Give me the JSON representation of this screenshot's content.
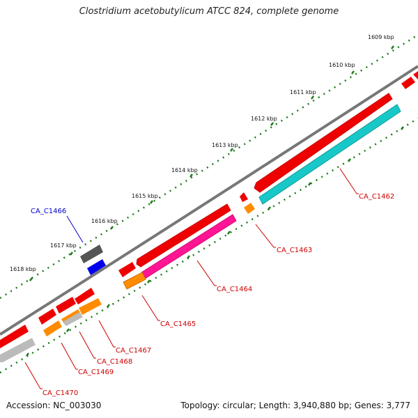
{
  "title": "Clostridium acetobutylicum ATCC 824, complete genome",
  "footer": {
    "accession": "Accession: NC_003030",
    "stats": "Topology: circular; Length: 3,940,880 bp; Genes: 3,777"
  },
  "kbp_labels": [
    "1609 kbp",
    "1610 kbp",
    "1611 kbp",
    "1612 kbp",
    "1613 kbp",
    "1614 kbp",
    "1615 kbp",
    "1616 kbp",
    "1617 kbp",
    "1618 kbp"
  ],
  "gene_labels": [
    "CA_C1462",
    "CA_C1463",
    "CA_C1464",
    "CA_C1465",
    "CA_C1466",
    "CA_C1467",
    "CA_C1468",
    "CA_C1469",
    "CA_C1470"
  ],
  "colors": {
    "backbone": "#777777",
    "tick": "#1a7a1a",
    "cds_red": "#ee0000",
    "cyan": "#18c8c8",
    "orange": "#ff8c00",
    "magenta": "#ff1493",
    "blue": "#0000ee",
    "gray_dark": "#555555",
    "gray_light": "#bbbbbb",
    "label_red": "#cc0000",
    "label_blue": "#0000cc"
  }
}
